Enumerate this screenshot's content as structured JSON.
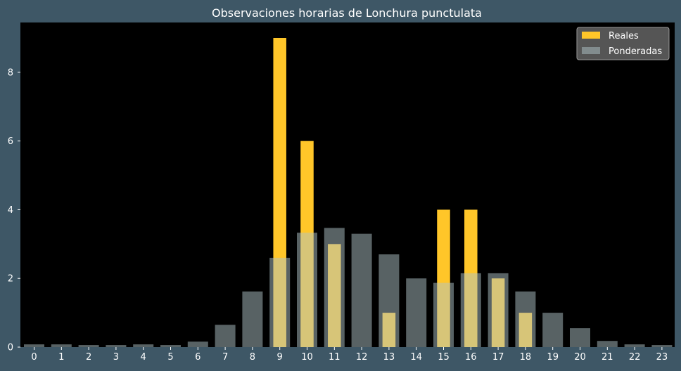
{
  "chart_data": {
    "type": "bar",
    "title": "Observaciones horarias de Lonchura punctulata",
    "xlabel": "",
    "ylabel": "",
    "categories": [
      "0",
      "1",
      "2",
      "3",
      "4",
      "5",
      "6",
      "7",
      "8",
      "9",
      "10",
      "11",
      "12",
      "13",
      "14",
      "15",
      "16",
      "17",
      "18",
      "19",
      "20",
      "21",
      "22",
      "23"
    ],
    "ylim": [
      0,
      9.45
    ],
    "yticks": [
      0,
      2,
      4,
      6,
      8
    ],
    "grid": false,
    "legend_position": "top-right",
    "series": [
      {
        "name": "Reales",
        "color": "#ffc629",
        "values": [
          0,
          0,
          0,
          0,
          0,
          0,
          0,
          0,
          0,
          9,
          6,
          3,
          0,
          1,
          0,
          4,
          4,
          2,
          1,
          0,
          0,
          0,
          0,
          0
        ]
      },
      {
        "name": "Ponderadas",
        "color": "#b0c4c8",
        "values": [
          0.08,
          0.08,
          0.06,
          0.06,
          0.08,
          0.06,
          0.16,
          0.65,
          1.62,
          2.6,
          3.33,
          3.47,
          3.3,
          2.7,
          2.0,
          1.87,
          2.15,
          2.15,
          1.62,
          1.0,
          0.55,
          0.18,
          0.08,
          0.06
        ]
      }
    ]
  },
  "colors": {
    "page_background": "#3e5766",
    "plot_background": "#000000",
    "legend_background": "#555555"
  }
}
